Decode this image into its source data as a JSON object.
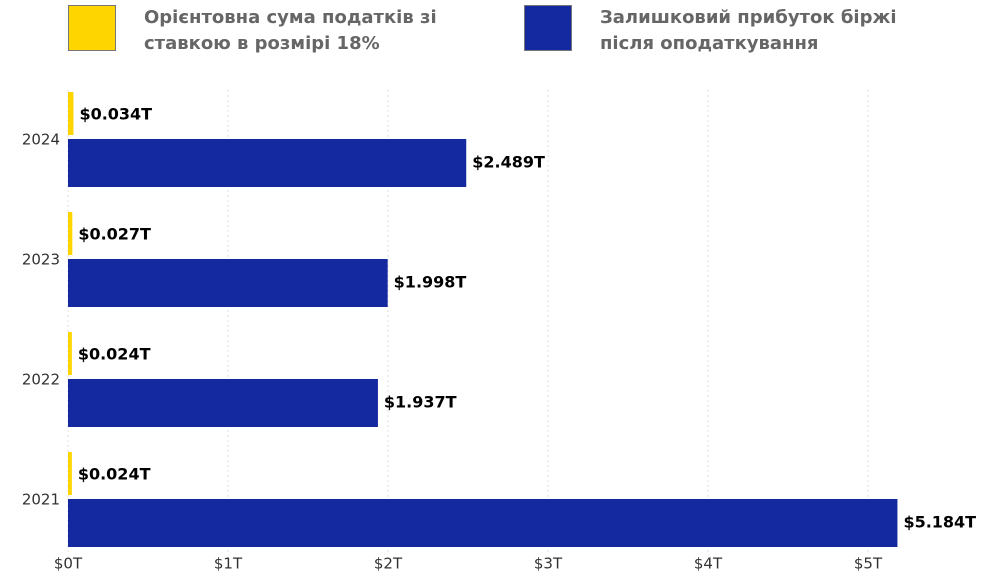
{
  "chart_data": {
    "type": "bar",
    "orientation": "horizontal",
    "categories": [
      "2024",
      "2023",
      "2022",
      "2021"
    ],
    "series": [
      {
        "name": "Орієнтовна сума податків зі ставкою в розмірі 18%",
        "color": "#FFD500",
        "values": [
          0.034,
          0.027,
          0.024,
          0.024
        ],
        "value_labels": [
          "$0.034T",
          "$0.027T",
          "$0.024T",
          "$0.024T"
        ]
      },
      {
        "name": "Залишковий прибуток біржі після оподаткування",
        "color": "#1428A0",
        "values": [
          2.489,
          1.998,
          1.937,
          5.184
        ],
        "value_labels": [
          "$2.489T",
          "$1.998T",
          "$1.937T",
          "$5.184T"
        ]
      }
    ],
    "xlim": [
      0,
      5.75
    ],
    "xticks": [
      {
        "value": 0,
        "label": "$0T"
      },
      {
        "value": 1,
        "label": "$1T"
      },
      {
        "value": 2,
        "label": "$2T"
      },
      {
        "value": 3,
        "label": "$3T"
      },
      {
        "value": 4,
        "label": "$4T"
      },
      {
        "value": 5,
        "label": "$5T"
      }
    ],
    "grid": true,
    "legend": "top"
  }
}
